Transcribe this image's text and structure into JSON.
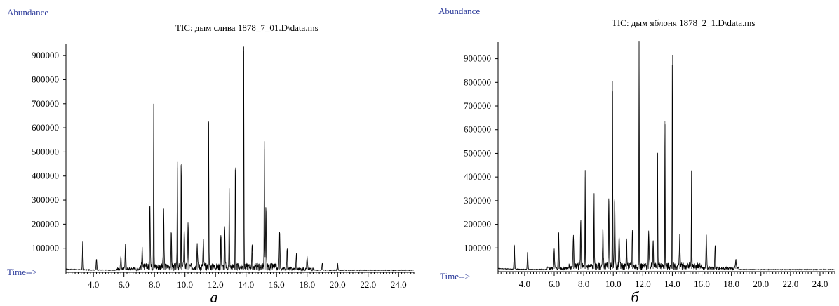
{
  "chart_data": [
    {
      "type": "line",
      "abundance_label": "Abundance",
      "title": "TIC: дым слива 1878_7_01.D\\data.ms",
      "time_label": "Time-->",
      "caption": "а",
      "xlim": [
        2.2,
        25.0
      ],
      "ylim": [
        0,
        950000
      ],
      "y_ticks": [
        100000,
        200000,
        300000,
        400000,
        500000,
        600000,
        700000,
        800000,
        900000
      ],
      "y_tick_labels": [
        "100000",
        "200000",
        "300000",
        "400000",
        "500000",
        "600000",
        "700000",
        "800000",
        "900000"
      ],
      "x_ticks": [
        4.0,
        6.0,
        8.0,
        10.0,
        12.0,
        14.0,
        16.0,
        18.0,
        20.0,
        22.0,
        24.0
      ],
      "x_tick_labels": [
        "4.0",
        "6.0",
        "8.0",
        "10.0",
        "12.0",
        "14.0",
        "16.0",
        "18.0",
        "20.0",
        "22.0",
        "24.0"
      ],
      "baseline": 12000,
      "series": [
        {
          "peaks": [
            [
              3.3,
              120000
            ],
            [
              4.2,
              45000
            ],
            [
              5.8,
              50000
            ],
            [
              6.1,
              110000
            ],
            [
              7.2,
              80000
            ],
            [
              7.7,
              275000
            ],
            [
              7.95,
              700000
            ],
            [
              8.6,
              230000
            ],
            [
              9.1,
              135000
            ],
            [
              9.5,
              435000
            ],
            [
              9.75,
              450000
            ],
            [
              9.95,
              160000
            ],
            [
              10.2,
              190000
            ],
            [
              10.8,
              100000
            ],
            [
              11.2,
              110000
            ],
            [
              11.55,
              620000
            ],
            [
              12.35,
              135000
            ],
            [
              12.6,
              160000
            ],
            [
              12.9,
              330000
            ],
            [
              13.3,
              435000
            ],
            [
              13.85,
              920000
            ],
            [
              14.4,
              80000
            ],
            [
              15.2,
              510000
            ],
            [
              15.3,
              250000
            ],
            [
              16.2,
              155000
            ],
            [
              16.7,
              90000
            ],
            [
              17.3,
              60000
            ],
            [
              18.0,
              50000
            ],
            [
              19.0,
              30000
            ],
            [
              20.0,
              30000
            ]
          ]
        }
      ]
    },
    {
      "type": "line",
      "abundance_label": "Abundance",
      "title": "TIC: дым яблоня   1878_2_1.D\\data.ms",
      "time_label": "Time-->",
      "caption": "б",
      "xlim": [
        2.2,
        25.0
      ],
      "ylim": [
        0,
        970000
      ],
      "y_ticks": [
        100000,
        200000,
        300000,
        400000,
        500000,
        600000,
        700000,
        800000,
        900000
      ],
      "y_tick_labels": [
        "100000",
        "200000",
        "300000",
        "400000",
        "500000",
        "600000",
        "700000",
        "800000",
        "900000"
      ],
      "x_ticks": [
        4.0,
        6.0,
        8.0,
        10.0,
        12.0,
        14.0,
        16.0,
        18.0,
        20.0,
        22.0,
        24.0
      ],
      "x_tick_labels": [
        "4.0",
        "6.0",
        "8.0",
        "10.0",
        "12.0",
        "14.0",
        "16.0",
        "18.0",
        "20.0",
        "22.0",
        "24.0"
      ],
      "baseline": 12000,
      "series": [
        {
          "peaks": [
            [
              3.3,
              105000
            ],
            [
              4.2,
              75000
            ],
            [
              6.0,
              85000
            ],
            [
              6.3,
              160000
            ],
            [
              7.3,
              135000
            ],
            [
              7.8,
              190000
            ],
            [
              8.1,
              400000
            ],
            [
              8.7,
              325000
            ],
            [
              9.3,
              160000
            ],
            [
              9.7,
              300000
            ],
            [
              9.95,
              805000
            ],
            [
              10.1,
              300000
            ],
            [
              10.4,
              140000
            ],
            [
              10.9,
              115000
            ],
            [
              11.3,
              155000
            ],
            [
              11.75,
              970000
            ],
            [
              12.4,
              150000
            ],
            [
              12.7,
              120000
            ],
            [
              13.0,
              495000
            ],
            [
              13.5,
              635000
            ],
            [
              14.0,
              915000
            ],
            [
              14.5,
              140000
            ],
            [
              15.3,
              400000
            ],
            [
              16.3,
              150000
            ],
            [
              16.9,
              100000
            ],
            [
              18.3,
              40000
            ]
          ]
        }
      ]
    }
  ]
}
